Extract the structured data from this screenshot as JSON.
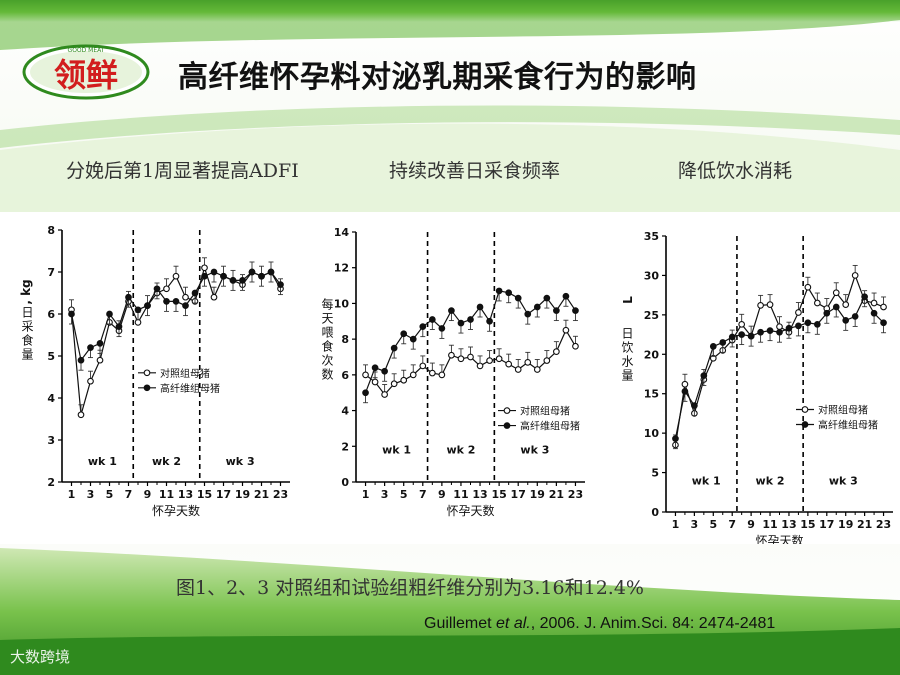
{
  "slide": {
    "logo_text": "领鲜",
    "logo_small": "GOOD  MEAT",
    "title": "高纤维怀孕料对泌乳期采食行为的影响",
    "subtitles": [
      "分娩后第1周显著提高ADFI",
      "持续改善日采食频率",
      "降低饮水消耗"
    ],
    "caption": "图1、2、3 对照组和试验组粗纤维分别为3.16和12.4%",
    "citation_author": "Guillemet ",
    "citation_etal": "et al.",
    "citation_rest": ", 2006. J. Anim.Sci. 84: 2474-2481",
    "watermark": "大数跨境",
    "colors": {
      "green_dark": "#3f9a2a",
      "green_light": "#b9de8e",
      "accent_red": "#d21d1d"
    }
  },
  "chart_data": [
    {
      "type": "line",
      "ylabel_cn": "日采食量",
      "yunit": ", kg",
      "xlabel": "怀孕天数",
      "ylim": [
        2,
        8
      ],
      "yticks": [
        2,
        3,
        4,
        5,
        6,
        7,
        8
      ],
      "xlim": [
        0,
        24
      ],
      "xticks": [
        1,
        3,
        5,
        7,
        9,
        11,
        13,
        15,
        17,
        19,
        21,
        23
      ],
      "dividers": [
        7.5,
        14.5
      ],
      "weeks": [
        "wk 1",
        "wk 2",
        "wk 3"
      ],
      "week_label_y": 2.4,
      "legend": {
        "position": "center-right",
        "top_value": 4.6
      },
      "series": [
        {
          "name": "对照组母猪",
          "marker": "open",
          "x": [
            1,
            2,
            3,
            4,
            5,
            6,
            7,
            8,
            9,
            10,
            11,
            12,
            13,
            14,
            15,
            16,
            17,
            18,
            19,
            20,
            21,
            22,
            23
          ],
          "y": [
            6.1,
            3.6,
            4.4,
            4.9,
            5.8,
            5.6,
            6.3,
            5.8,
            6.2,
            6.5,
            6.6,
            6.9,
            6.4,
            6.3,
            7.1,
            6.4,
            6.9,
            6.8,
            6.7,
            7.0,
            6.9,
            7.0,
            6.6
          ]
        },
        {
          "name": "高纤维组母猪",
          "marker": "filled",
          "x": [
            1,
            2,
            3,
            4,
            5,
            6,
            7,
            8,
            9,
            10,
            11,
            12,
            13,
            14,
            15,
            16,
            17,
            18,
            19,
            20,
            21,
            22,
            23
          ],
          "y": [
            6.0,
            4.9,
            5.2,
            5.3,
            6.0,
            5.7,
            6.4,
            6.1,
            6.2,
            6.6,
            6.3,
            6.3,
            6.2,
            6.5,
            6.9,
            7.0,
            6.9,
            6.8,
            6.8,
            7.0,
            6.9,
            7.0,
            6.7
          ]
        }
      ]
    },
    {
      "type": "line",
      "ylabel_cn": "每天喂食次数",
      "yunit": "",
      "xlabel": "怀孕天数",
      "ylim": [
        0,
        14
      ],
      "yticks": [
        0,
        2,
        4,
        6,
        8,
        10,
        12,
        14
      ],
      "xlim": [
        0,
        24
      ],
      "xticks": [
        1,
        3,
        5,
        7,
        9,
        11,
        13,
        15,
        17,
        19,
        21,
        23
      ],
      "dividers": [
        7.5,
        14.5
      ],
      "weeks": [
        "wk 1",
        "wk 2",
        "wk 3"
      ],
      "week_label_y": 1.6,
      "legend": {
        "position": "center-right",
        "top_value": 4.0
      },
      "series": [
        {
          "name": "对照组母猪",
          "marker": "open",
          "x": [
            1,
            2,
            3,
            4,
            5,
            6,
            7,
            8,
            9,
            10,
            11,
            12,
            13,
            14,
            15,
            16,
            17,
            18,
            19,
            20,
            21,
            22,
            23
          ],
          "y": [
            6.0,
            5.6,
            4.9,
            5.5,
            5.7,
            6.0,
            6.5,
            6.1,
            6.0,
            7.1,
            6.9,
            7.0,
            6.5,
            6.8,
            6.9,
            6.6,
            6.3,
            6.7,
            6.3,
            6.8,
            7.3,
            8.5,
            7.6
          ]
        },
        {
          "name": "高纤维组母猪",
          "marker": "filled",
          "x": [
            1,
            2,
            3,
            4,
            5,
            6,
            7,
            8,
            9,
            10,
            11,
            12,
            13,
            14,
            15,
            16,
            17,
            18,
            19,
            20,
            21,
            22,
            23
          ],
          "y": [
            5.0,
            6.4,
            6.2,
            7.5,
            8.3,
            8.0,
            8.7,
            9.1,
            8.6,
            9.6,
            8.9,
            9.1,
            9.8,
            9.0,
            10.7,
            10.6,
            10.3,
            9.4,
            9.8,
            10.3,
            9.6,
            10.4,
            9.6
          ]
        }
      ]
    },
    {
      "type": "line",
      "ylabel_cn": "日饮水量",
      "yunit": "L",
      "xlabel": "怀孕天数",
      "ylim": [
        0,
        35
      ],
      "yticks": [
        0,
        5,
        10,
        15,
        20,
        25,
        30,
        35
      ],
      "xlim": [
        0,
        24
      ],
      "xticks": [
        1,
        3,
        5,
        7,
        9,
        11,
        13,
        15,
        17,
        19,
        21,
        23
      ],
      "dividers": [
        7.5,
        14.5
      ],
      "weeks": [
        "wk 1",
        "wk 2",
        "wk 3"
      ],
      "week_label_y": 3.5,
      "legend": {
        "position": "center-right",
        "top_value": 13.0
      },
      "series": [
        {
          "name": "对照组母猪",
          "marker": "open",
          "x": [
            1,
            2,
            3,
            4,
            5,
            6,
            7,
            8,
            9,
            10,
            11,
            12,
            13,
            14,
            15,
            16,
            17,
            18,
            19,
            20,
            21,
            22,
            23
          ],
          "y": [
            8.5,
            16.2,
            12.5,
            16.8,
            19.5,
            20.5,
            21.8,
            23.8,
            22.3,
            26.2,
            26.3,
            23.5,
            22.8,
            25.3,
            28.5,
            26.5,
            25.8,
            27.8,
            26.3,
            30.0,
            26.8,
            26.5,
            26.0
          ]
        },
        {
          "name": "高纤维组母猪",
          "marker": "filled",
          "x": [
            1,
            2,
            3,
            4,
            5,
            6,
            7,
            8,
            9,
            10,
            11,
            12,
            13,
            14,
            15,
            16,
            17,
            18,
            19,
            20,
            21,
            22,
            23
          ],
          "y": [
            9.3,
            15.3,
            13.5,
            17.3,
            21.0,
            21.5,
            22.2,
            22.5,
            22.3,
            22.8,
            23.0,
            22.8,
            23.3,
            23.6,
            24.0,
            23.8,
            25.2,
            26.0,
            24.3,
            24.8,
            27.3,
            25.2,
            24.0
          ]
        }
      ]
    }
  ]
}
